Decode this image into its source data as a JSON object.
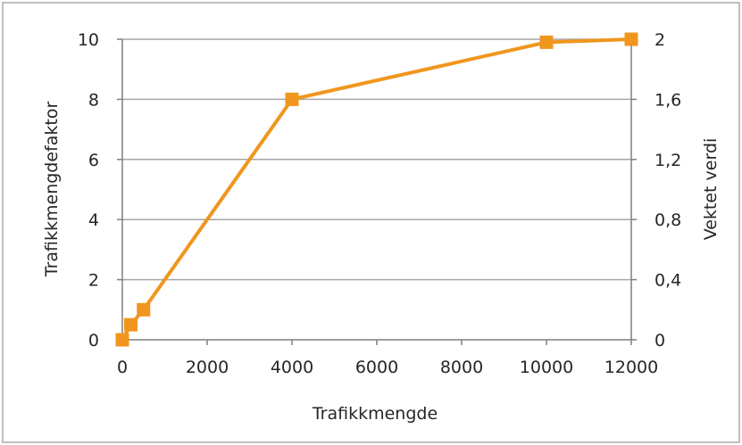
{
  "chart_data": {
    "type": "line",
    "title": "",
    "xlabel": "Trafikkmengde",
    "ylabel": "Trafikkmengdefaktor",
    "ylabel_right": "Vektet verdi",
    "xlim": [
      0,
      12000
    ],
    "ylim": [
      0,
      10
    ],
    "ylim_right": [
      0,
      2
    ],
    "x_ticks": [
      "0",
      "2000",
      "4000",
      "6000",
      "8000",
      "10000",
      "12000"
    ],
    "y_ticks": [
      "0",
      "2",
      "4",
      "6",
      "8",
      "10"
    ],
    "y_ticks_right": [
      "0",
      "0,4",
      "0,8",
      "1,2",
      "1,6",
      "2"
    ],
    "grid": "horizontal",
    "legend": "none",
    "series": [
      {
        "x": [
          0,
          200,
          500,
          4000,
          10000,
          12000
        ],
        "values": [
          0,
          0.5,
          1,
          8,
          9.9,
          10
        ],
        "color": "#f0961e",
        "marker": "square"
      }
    ],
    "colors": {
      "line": "#f0961e",
      "grid": "#a6a6a6",
      "axis": "#7f7f7f",
      "frame": "#bfbfbf",
      "text": "#262626"
    }
  }
}
